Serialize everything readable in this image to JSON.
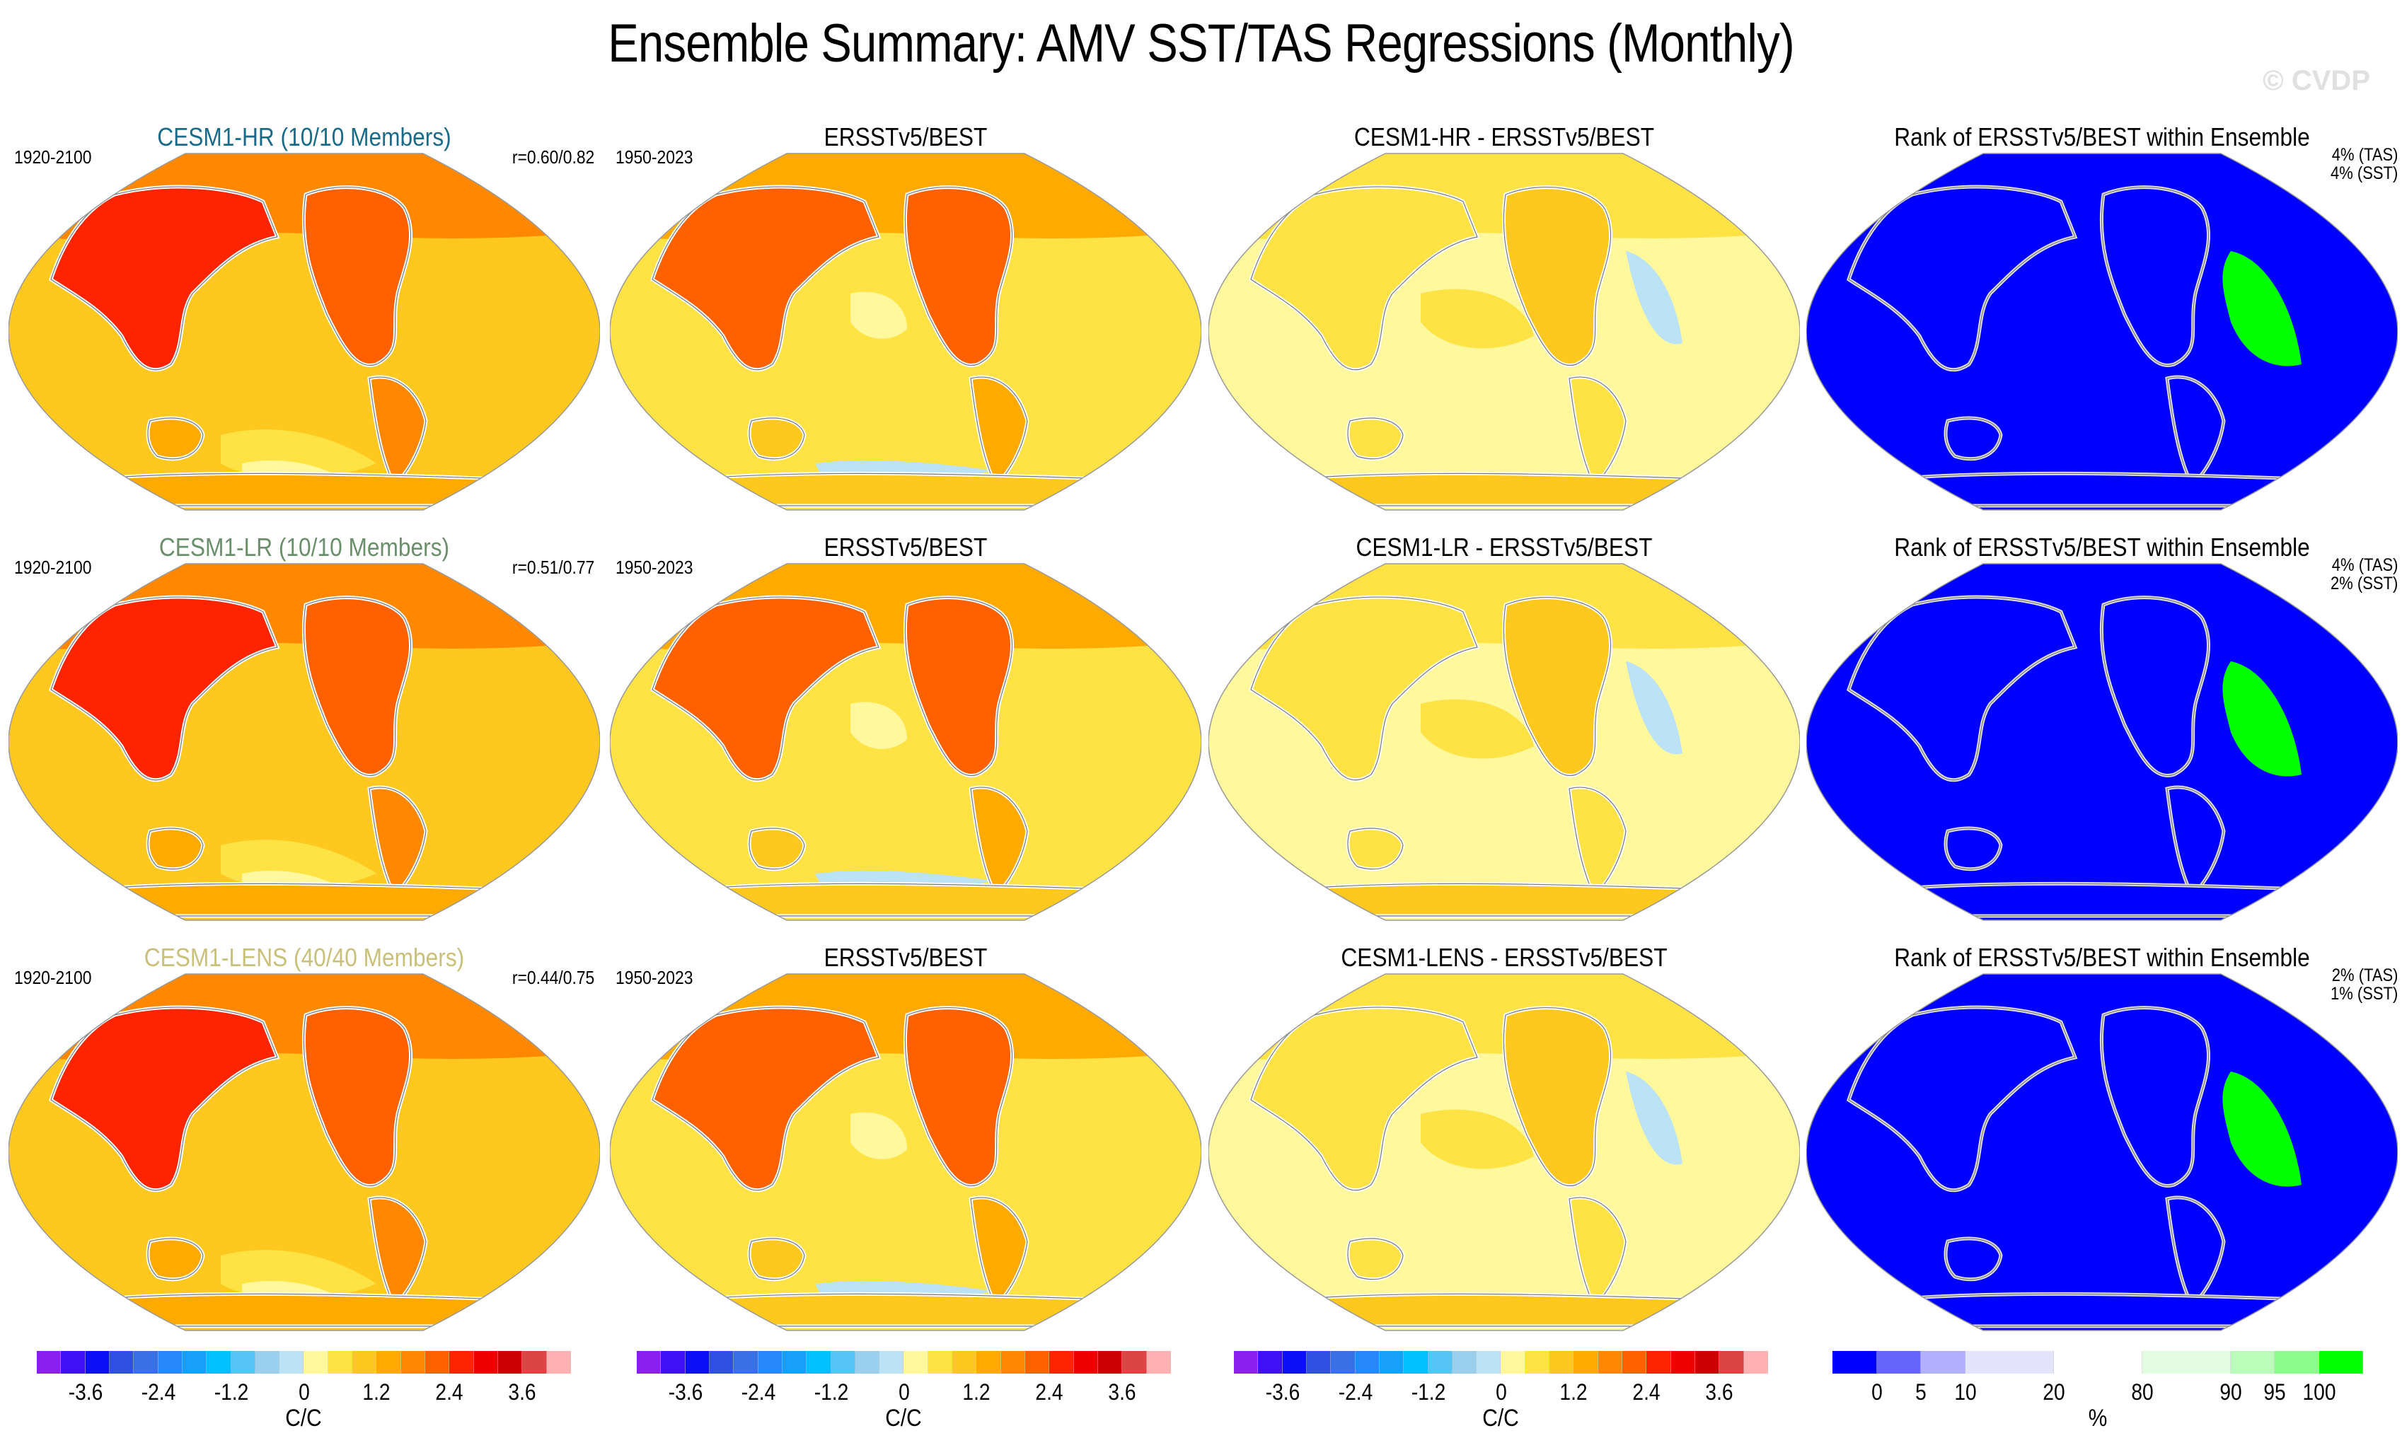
{
  "header": {
    "title": "Ensemble Summary: AMV SST/TAS Regressions (Monthly)",
    "watermark": "© CVDP"
  },
  "colors": {
    "model_title_hr": "#1a6b8a",
    "model_title_lr": "#6b8e6b",
    "model_title_lens": "#c9c07a",
    "rank_low": "#0000ff",
    "rank_high": "#00ff00"
  },
  "rows": [
    {
      "model": {
        "title": "CESM1-HR (10/10 Members)",
        "period": "1920-2100",
        "corr": "r=0.60/0.82",
        "title_color": "#1a6b8a"
      },
      "obs": {
        "title": "ERSSTv5/BEST",
        "period": "1950-2023"
      },
      "diff": {
        "title": "CESM1-HR - ERSSTv5/BEST"
      },
      "rank": {
        "title": "Rank of ERSSTv5/BEST within Ensemble",
        "tas": "4% (TAS)",
        "sst": "4% (SST)"
      }
    },
    {
      "model": {
        "title": "CESM1-LR (10/10 Members)",
        "period": "1920-2100",
        "corr": "r=0.51/0.77",
        "title_color": "#6b8e6b"
      },
      "obs": {
        "title": "ERSSTv5/BEST",
        "period": "1950-2023"
      },
      "diff": {
        "title": "CESM1-LR - ERSSTv5/BEST"
      },
      "rank": {
        "title": "Rank of ERSSTv5/BEST within Ensemble",
        "tas": "4% (TAS)",
        "sst": "2% (SST)"
      }
    },
    {
      "model": {
        "title": "CESM1-LENS (40/40 Members)",
        "period": "1920-2100",
        "corr": "r=0.44/0.75",
        "title_color": "#c9c07a"
      },
      "obs": {
        "title": "ERSSTv5/BEST",
        "period": "1950-2023"
      },
      "diff": {
        "title": "CESM1-LENS - ERSSTv5/BEST"
      },
      "rank": {
        "title": "Rank of ERSSTv5/BEST within Ensemble",
        "tas": "2% (TAS)",
        "sst": "1% (SST)"
      }
    }
  ],
  "chart_data": [
    {
      "type": "heatmap",
      "title": "AMV SST/TAS regression colorbar",
      "unit": "C/C",
      "colors": [
        "#8a1ff0",
        "#3f10f5",
        "#0c10f8",
        "#3050e4",
        "#3a70e6",
        "#2888fa",
        "#16a0fa",
        "#00c0ff",
        "#56c4f4",
        "#9ad0ee",
        "#bce2f6",
        "#fff89c",
        "#ffe344",
        "#ffc81e",
        "#ffaa00",
        "#ff8800",
        "#ff6000",
        "#ff2400",
        "#ee0000",
        "#cc0000",
        "#dd4444",
        "#ffb0b0"
      ],
      "tick_labels": [
        "-3.6",
        "-2.4",
        "-1.2",
        "0",
        "1.2",
        "2.4",
        "3.6"
      ],
      "tick_values": [
        -3.6,
        -2.4,
        -1.2,
        0,
        1.2,
        2.4,
        3.6
      ],
      "range": [
        -4.2,
        4.2
      ]
    },
    {
      "type": "heatmap",
      "title": "Rank colorbar",
      "unit": "%",
      "colors": [
        "#0000ff",
        "#6666ff",
        "#b0b0ff",
        "#e4e4fc",
        "#ffffff",
        "#e2fce2",
        "#bafcba",
        "#8cfc8c",
        "#00ff00"
      ],
      "bin_widths": [
        1,
        1,
        1,
        2,
        2,
        2,
        1,
        1,
        1
      ],
      "tick_labels": [
        "0",
        "5",
        "10",
        "20",
        "80",
        "90",
        "95",
        "100"
      ],
      "tick_values": [
        0,
        5,
        10,
        20,
        80,
        90,
        95,
        100
      ]
    }
  ],
  "colorbars": {
    "regression": {
      "ticks": [
        "-3.6",
        "-2.4",
        "-1.2",
        "0",
        "1.2",
        "2.4",
        "3.6"
      ],
      "unit": "C/C"
    },
    "rank": {
      "ticks": [
        "0",
        "5",
        "10",
        "20",
        "80",
        "90",
        "95",
        "100"
      ],
      "unit": "%"
    }
  }
}
